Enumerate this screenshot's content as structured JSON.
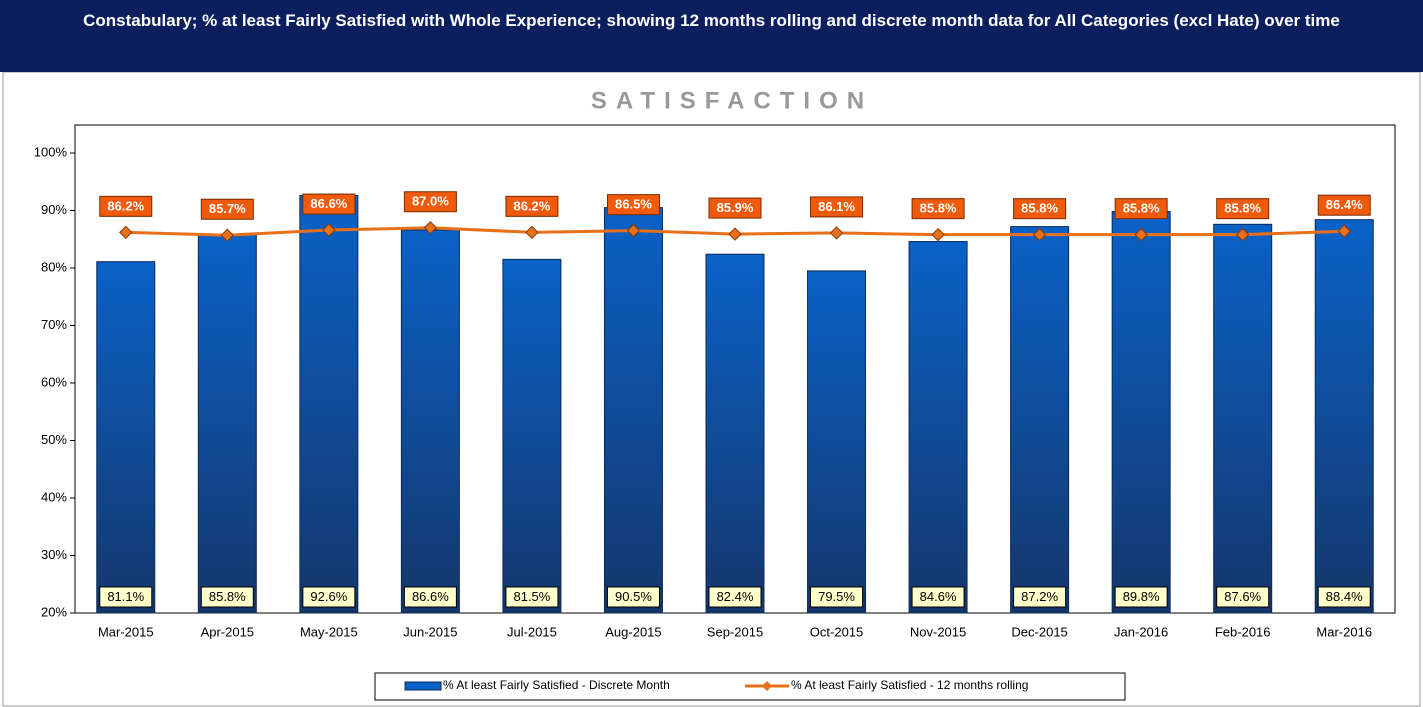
{
  "chart_data": {
    "type": "bar_line",
    "banner": "Constabulary; % at least Fairly Satisfied with Whole Experience; showing 12 months rolling and discrete month data for All Categories (excl Hate) over time",
    "title": "SATISFACTION",
    "categories": [
      "Mar-2015",
      "Apr-2015",
      "May-2015",
      "Jun-2015",
      "Jul-2015",
      "Aug-2015",
      "Sep-2015",
      "Oct-2015",
      "Nov-2015",
      "Dec-2015",
      "Jan-2016",
      "Feb-2016",
      "Mar-2016"
    ],
    "series": [
      {
        "name": "% At least Fairly Satisfied - Discrete Month",
        "type": "bar",
        "color": "#0a62c8",
        "values": [
          81.1,
          85.8,
          92.6,
          86.6,
          81.5,
          90.5,
          82.4,
          79.5,
          84.6,
          87.2,
          89.8,
          87.6,
          88.4
        ],
        "value_labels": [
          "81.1%",
          "85.8%",
          "92.6%",
          "86.6%",
          "81.5%",
          "90.5%",
          "82.4%",
          "79.5%",
          "84.6%",
          "87.2%",
          "89.8%",
          "87.6%",
          "88.4%"
        ]
      },
      {
        "name": "% At least Fairly Satisfied - 12 months rolling",
        "type": "line",
        "color": "#e8701a",
        "values": [
          86.2,
          85.7,
          86.6,
          87.0,
          86.2,
          86.5,
          85.9,
          86.1,
          85.8,
          85.8,
          85.8,
          85.8,
          86.4
        ],
        "value_labels": [
          "86.2%",
          "85.7%",
          "86.6%",
          "87.0%",
          "86.2%",
          "86.5%",
          "85.9%",
          "86.1%",
          "85.8%",
          "85.8%",
          "85.8%",
          "85.8%",
          "86.4%"
        ]
      }
    ],
    "ylim": [
      20,
      100
    ],
    "yticks": [
      {
        "value": 20,
        "label": "20%"
      },
      {
        "value": 30,
        "label": "30%"
      },
      {
        "value": 40,
        "label": "40%"
      },
      {
        "value": 50,
        "label": "50%"
      },
      {
        "value": 60,
        "label": "60%"
      },
      {
        "value": 70,
        "label": "70%"
      },
      {
        "value": 80,
        "label": "80%"
      },
      {
        "value": 90,
        "label": "90%"
      },
      {
        "value": 100,
        "label": "100%"
      }
    ],
    "legend": "bottom"
  }
}
